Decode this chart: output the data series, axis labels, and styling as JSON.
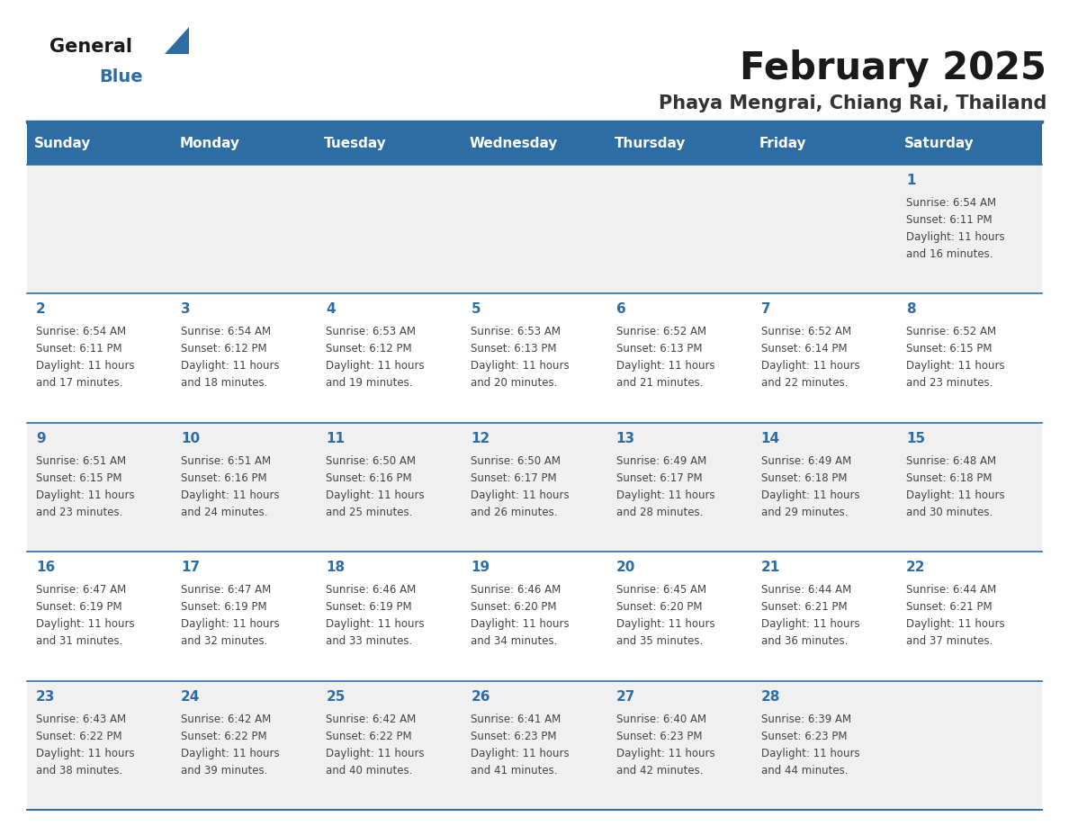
{
  "title": "February 2025",
  "subtitle": "Phaya Mengrai, Chiang Rai, Thailand",
  "days_of_week": [
    "Sunday",
    "Monday",
    "Tuesday",
    "Wednesday",
    "Thursday",
    "Friday",
    "Saturday"
  ],
  "header_bg": "#2E6DA4",
  "header_text": "#FFFFFF",
  "cell_bg_odd": "#F0F0F0",
  "cell_bg_even": "#FFFFFF",
  "border_color": "#2E6DA4",
  "text_color": "#444444",
  "day_num_color": "#2E6DA4",
  "title_color": "#1a1a1a",
  "subtitle_color": "#333333",
  "logo_general_color": "#1a1a1a",
  "logo_blue_color": "#2E6DA4",
  "calendar": [
    [
      null,
      null,
      null,
      null,
      null,
      null,
      {
        "day": 1,
        "sunrise": "6:54 AM",
        "sunset": "6:11 PM",
        "daylight_l1": "11 hours",
        "daylight_l2": "and 16 minutes."
      }
    ],
    [
      {
        "day": 2,
        "sunrise": "6:54 AM",
        "sunset": "6:11 PM",
        "daylight_l1": "11 hours",
        "daylight_l2": "and 17 minutes."
      },
      {
        "day": 3,
        "sunrise": "6:54 AM",
        "sunset": "6:12 PM",
        "daylight_l1": "11 hours",
        "daylight_l2": "and 18 minutes."
      },
      {
        "day": 4,
        "sunrise": "6:53 AM",
        "sunset": "6:12 PM",
        "daylight_l1": "11 hours",
        "daylight_l2": "and 19 minutes."
      },
      {
        "day": 5,
        "sunrise": "6:53 AM",
        "sunset": "6:13 PM",
        "daylight_l1": "11 hours",
        "daylight_l2": "and 20 minutes."
      },
      {
        "day": 6,
        "sunrise": "6:52 AM",
        "sunset": "6:13 PM",
        "daylight_l1": "11 hours",
        "daylight_l2": "and 21 minutes."
      },
      {
        "day": 7,
        "sunrise": "6:52 AM",
        "sunset": "6:14 PM",
        "daylight_l1": "11 hours",
        "daylight_l2": "and 22 minutes."
      },
      {
        "day": 8,
        "sunrise": "6:52 AM",
        "sunset": "6:15 PM",
        "daylight_l1": "11 hours",
        "daylight_l2": "and 23 minutes."
      }
    ],
    [
      {
        "day": 9,
        "sunrise": "6:51 AM",
        "sunset": "6:15 PM",
        "daylight_l1": "11 hours",
        "daylight_l2": "and 23 minutes."
      },
      {
        "day": 10,
        "sunrise": "6:51 AM",
        "sunset": "6:16 PM",
        "daylight_l1": "11 hours",
        "daylight_l2": "and 24 minutes."
      },
      {
        "day": 11,
        "sunrise": "6:50 AM",
        "sunset": "6:16 PM",
        "daylight_l1": "11 hours",
        "daylight_l2": "and 25 minutes."
      },
      {
        "day": 12,
        "sunrise": "6:50 AM",
        "sunset": "6:17 PM",
        "daylight_l1": "11 hours",
        "daylight_l2": "and 26 minutes."
      },
      {
        "day": 13,
        "sunrise": "6:49 AM",
        "sunset": "6:17 PM",
        "daylight_l1": "11 hours",
        "daylight_l2": "and 28 minutes."
      },
      {
        "day": 14,
        "sunrise": "6:49 AM",
        "sunset": "6:18 PM",
        "daylight_l1": "11 hours",
        "daylight_l2": "and 29 minutes."
      },
      {
        "day": 15,
        "sunrise": "6:48 AM",
        "sunset": "6:18 PM",
        "daylight_l1": "11 hours",
        "daylight_l2": "and 30 minutes."
      }
    ],
    [
      {
        "day": 16,
        "sunrise": "6:47 AM",
        "sunset": "6:19 PM",
        "daylight_l1": "11 hours",
        "daylight_l2": "and 31 minutes."
      },
      {
        "day": 17,
        "sunrise": "6:47 AM",
        "sunset": "6:19 PM",
        "daylight_l1": "11 hours",
        "daylight_l2": "and 32 minutes."
      },
      {
        "day": 18,
        "sunrise": "6:46 AM",
        "sunset": "6:19 PM",
        "daylight_l1": "11 hours",
        "daylight_l2": "and 33 minutes."
      },
      {
        "day": 19,
        "sunrise": "6:46 AM",
        "sunset": "6:20 PM",
        "daylight_l1": "11 hours",
        "daylight_l2": "and 34 minutes."
      },
      {
        "day": 20,
        "sunrise": "6:45 AM",
        "sunset": "6:20 PM",
        "daylight_l1": "11 hours",
        "daylight_l2": "and 35 minutes."
      },
      {
        "day": 21,
        "sunrise": "6:44 AM",
        "sunset": "6:21 PM",
        "daylight_l1": "11 hours",
        "daylight_l2": "and 36 minutes."
      },
      {
        "day": 22,
        "sunrise": "6:44 AM",
        "sunset": "6:21 PM",
        "daylight_l1": "11 hours",
        "daylight_l2": "and 37 minutes."
      }
    ],
    [
      {
        "day": 23,
        "sunrise": "6:43 AM",
        "sunset": "6:22 PM",
        "daylight_l1": "11 hours",
        "daylight_l2": "and 38 minutes."
      },
      {
        "day": 24,
        "sunrise": "6:42 AM",
        "sunset": "6:22 PM",
        "daylight_l1": "11 hours",
        "daylight_l2": "and 39 minutes."
      },
      {
        "day": 25,
        "sunrise": "6:42 AM",
        "sunset": "6:22 PM",
        "daylight_l1": "11 hours",
        "daylight_l2": "and 40 minutes."
      },
      {
        "day": 26,
        "sunrise": "6:41 AM",
        "sunset": "6:23 PM",
        "daylight_l1": "11 hours",
        "daylight_l2": "and 41 minutes."
      },
      {
        "day": 27,
        "sunrise": "6:40 AM",
        "sunset": "6:23 PM",
        "daylight_l1": "11 hours",
        "daylight_l2": "and 42 minutes."
      },
      {
        "day": 28,
        "sunrise": "6:39 AM",
        "sunset": "6:23 PM",
        "daylight_l1": "11 hours",
        "daylight_l2": "and 44 minutes."
      },
      null
    ]
  ],
  "fig_width": 11.88,
  "fig_height": 9.18
}
